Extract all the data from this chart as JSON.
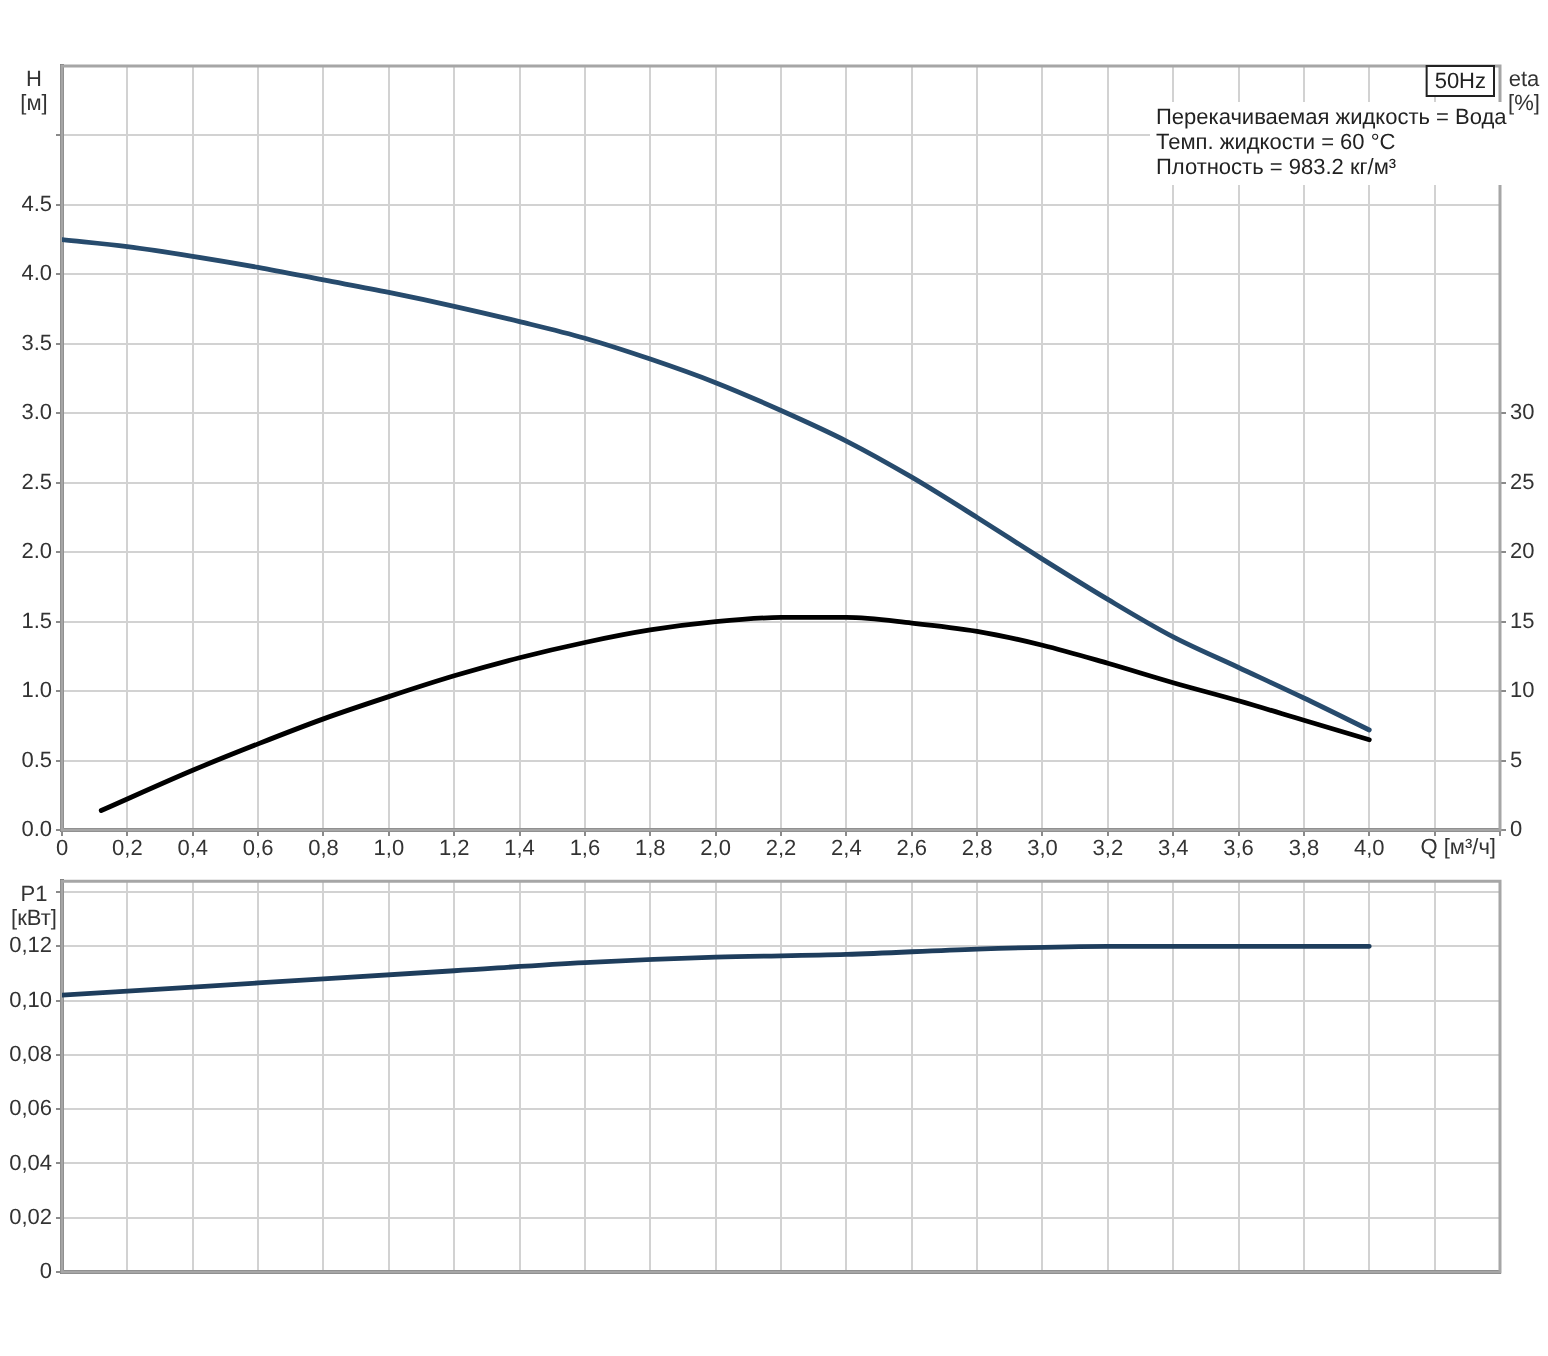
{
  "chart_data": [
    {
      "type": "line",
      "title": "50Hz",
      "xlabel": "Q [м³/ч]",
      "ylabel": "H [м]",
      "y2label": "eta [%]",
      "annotations": [
        "Перекачиваемая жидкость = Вода",
        "Темп. жидкости = 60 °C",
        "Плотность = 983.2 кг/м³"
      ],
      "x": [
        0,
        0.2,
        0.4,
        0.6,
        0.8,
        1.0,
        1.2,
        1.4,
        1.6,
        1.8,
        2.0,
        2.2,
        2.4,
        2.6,
        2.8,
        3.0,
        3.2,
        3.4,
        3.6,
        3.8,
        4.0
      ],
      "series": [
        {
          "color": "#274b6d",
          "values": [
            4.25,
            4.2,
            4.13,
            4.05,
            3.96,
            3.87,
            3.77,
            3.66,
            3.54,
            3.39,
            3.22,
            3.02,
            2.8,
            2.54,
            2.25,
            1.95,
            1.66,
            1.39,
            1.17,
            0.95,
            0.72
          ]
        },
        {
          "color": "#000000",
          "axis": "y2",
          "x": [
            0.12,
            0.4,
            0.6,
            0.8,
            1.0,
            1.2,
            1.4,
            1.6,
            1.8,
            2.0,
            2.2,
            2.4,
            2.6,
            2.8,
            3.0,
            3.2,
            3.4,
            3.6,
            3.8,
            4.0
          ],
          "values": [
            1.4,
            4.3,
            6.2,
            8.0,
            9.6,
            11.1,
            12.4,
            13.5,
            14.4,
            15.0,
            15.3,
            15.3,
            14.9,
            14.3,
            13.3,
            12.0,
            10.6,
            9.3,
            7.9,
            6.5
          ]
        }
      ],
      "xlim": [
        0,
        4.4
      ],
      "xticks": [
        0,
        {
          "value": 0.2,
          "label": "0,2"
        },
        {
          "value": 0.4,
          "label": "0,4"
        },
        {
          "value": 0.6,
          "label": "0,6"
        },
        {
          "value": 0.8,
          "label": "0,8"
        },
        {
          "value": 1.0,
          "label": "1,0"
        },
        {
          "value": 1.2,
          "label": "1,2"
        },
        {
          "value": 1.4,
          "label": "1,4"
        },
        {
          "value": 1.6,
          "label": "1,6"
        },
        {
          "value": 1.8,
          "label": "1,8"
        },
        {
          "value": 2.0,
          "label": "2,0"
        },
        {
          "value": 2.2,
          "label": "2,2"
        },
        {
          "value": 2.4,
          "label": "2,4"
        },
        {
          "value": 2.6,
          "label": "2,6"
        },
        {
          "value": 2.8,
          "label": "2,8"
        },
        {
          "value": 3.0,
          "label": "3,0"
        },
        {
          "value": 3.2,
          "label": "3,2"
        },
        {
          "value": 3.4,
          "label": "3,4"
        },
        {
          "value": 3.6,
          "label": "3,6"
        },
        {
          "value": 3.8,
          "label": "3,8"
        },
        {
          "value": 4.0,
          "label": "4,0"
        },
        {
          "value": 4.2,
          "label": null
        },
        {
          "value": 4.4,
          "label": null
        }
      ],
      "ylim": [
        0,
        5.5
      ],
      "yticks": [
        {
          "value": 0,
          "label": "0.0"
        },
        0.5,
        {
          "value": 1,
          "label": "1.0"
        },
        1.5,
        {
          "value": 2,
          "label": "2.0"
        },
        2.5,
        {
          "value": 3,
          "label": "3.0"
        },
        3.5,
        {
          "value": 4,
          "label": "4.0"
        },
        4.5,
        {
          "value": 5,
          "label": null
        }
      ],
      "y2lim": [
        0,
        55
      ],
      "y2ticks": [
        0,
        5,
        10,
        15,
        20,
        25,
        30
      ],
      "grid": true,
      "marker": "none"
    },
    {
      "type": "line",
      "ylabel": "P1 [кВт]",
      "x": [
        0,
        0.4,
        0.8,
        1.2,
        1.6,
        2.0,
        2.4,
        2.8,
        3.2,
        3.6,
        4.0
      ],
      "series": [
        {
          "color": "#1e3d5c",
          "values": [
            0.102,
            0.105,
            0.108,
            0.111,
            0.114,
            0.116,
            0.117,
            0.119,
            0.12,
            0.12,
            0.12
          ]
        }
      ],
      "xlim": [
        0,
        4.4
      ],
      "xticks": [
        0,
        0.2,
        0.4,
        0.6,
        0.8,
        1.0,
        1.2,
        1.4,
        1.6,
        1.8,
        2.0,
        2.2,
        2.4,
        2.6,
        2.8,
        3.0,
        3.2,
        3.4,
        3.6,
        3.8,
        4.0,
        4.2,
        4.4
      ],
      "ylim": [
        0,
        0.144
      ],
      "yticks": [
        0,
        {
          "value": 0.02,
          "label": "0,02"
        },
        {
          "value": 0.04,
          "label": "0,04"
        },
        {
          "value": 0.06,
          "label": "0,06"
        },
        {
          "value": 0.08,
          "label": "0,08"
        },
        {
          "value": 0.1,
          "label": "0,10"
        },
        {
          "value": 0.12,
          "label": "0,12"
        },
        {
          "value": 0.14,
          "label": null
        }
      ],
      "tick_labels": "y",
      "grid": true,
      "marker": "none"
    }
  ]
}
